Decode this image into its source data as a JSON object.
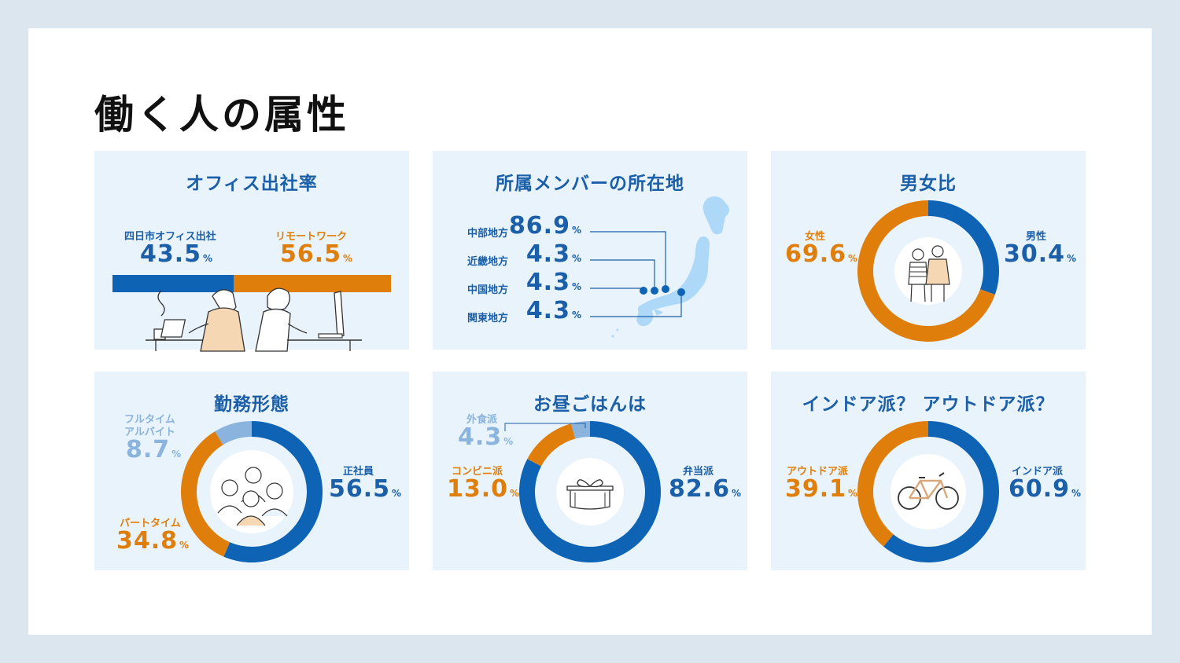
{
  "page": {
    "title": "働く人の属性"
  },
  "colors": {
    "blue": "#0e63b4",
    "orange": "#e07e0b",
    "light_blue": "#8ab3dd",
    "card_bg": "#e8f3fb"
  },
  "office": {
    "title": "オフィス出社率",
    "left_label": "四日市オフィス出社",
    "left_value": "43.5",
    "left_unit": "%",
    "right_label": "リモートワーク",
    "right_value": "56.5",
    "right_unit": "%"
  },
  "location": {
    "title": "所属メンバーの所在地",
    "regions": [
      {
        "label": "中部地方",
        "value": "86.9",
        "unit": "%"
      },
      {
        "label": "近畿地方",
        "value": "4.3",
        "unit": "%"
      },
      {
        "label": "中国地方",
        "value": "4.3",
        "unit": "%"
      },
      {
        "label": "関東地方",
        "value": "4.3",
        "unit": "%"
      }
    ]
  },
  "gender": {
    "title": "男女比",
    "female_label": "女性",
    "female_value": "69.6",
    "female_unit": "%",
    "male_label": "男性",
    "male_value": "30.4",
    "male_unit": "%"
  },
  "employment": {
    "title": "勤務形態",
    "part_full_label_1": "フルタイム",
    "part_full_label_2": "アルバイト",
    "part_full_value": "8.7",
    "part_full_unit": "%",
    "part_time_label": "パートタイム",
    "part_time_value": "34.8",
    "part_time_unit": "%",
    "regular_label": "正社員",
    "regular_value": "56.5",
    "regular_unit": "%"
  },
  "lunch": {
    "title": "お昼ごはんは",
    "eat_out_label": "外食派",
    "eat_out_value": "4.3",
    "eat_out_unit": "%",
    "convenience_label": "コンビニ派",
    "convenience_value": "13.0",
    "convenience_unit": "%",
    "bento_label": "弁当派",
    "bento_value": "82.6",
    "bento_unit": "%"
  },
  "activity": {
    "title": "インドア派？ アウトドア派？",
    "outdoor_label": "アウトドア派",
    "outdoor_value": "39.1",
    "outdoor_unit": "%",
    "indoor_label": "インドア派",
    "indoor_value": "60.9",
    "indoor_unit": "%"
  },
  "chart_data": [
    {
      "type": "bar",
      "title": "オフィス出社率",
      "categories": [
        "四日市オフィス出社",
        "リモートワーク"
      ],
      "values": [
        43.5,
        56.5
      ],
      "colors": [
        "#0e63b4",
        "#e07e0b"
      ]
    },
    {
      "type": "table",
      "title": "所属メンバーの所在地",
      "categories": [
        "中部地方",
        "近畿地方",
        "中国地方",
        "関東地方"
      ],
      "values": [
        86.9,
        4.3,
        4.3,
        4.3
      ]
    },
    {
      "type": "pie",
      "title": "男女比",
      "categories": [
        "男性",
        "女性"
      ],
      "values": [
        30.4,
        69.6
      ],
      "colors": [
        "#0e63b4",
        "#e07e0b"
      ]
    },
    {
      "type": "pie",
      "title": "勤務形態",
      "categories": [
        "正社員",
        "パートタイム",
        "フルタイム アルバイト"
      ],
      "values": [
        56.5,
        34.8,
        8.7
      ],
      "colors": [
        "#0e63b4",
        "#e07e0b",
        "#8ab3dd"
      ]
    },
    {
      "type": "pie",
      "title": "お昼ごはんは",
      "categories": [
        "弁当派",
        "コンビニ派",
        "外食派"
      ],
      "values": [
        82.6,
        13.0,
        4.3
      ],
      "colors": [
        "#0e63b4",
        "#e07e0b",
        "#8ab3dd"
      ]
    },
    {
      "type": "pie",
      "title": "インドア派？ アウトドア派？",
      "categories": [
        "インドア派",
        "アウトドア派"
      ],
      "values": [
        60.9,
        39.1
      ],
      "colors": [
        "#0e63b4",
        "#e07e0b"
      ]
    }
  ]
}
